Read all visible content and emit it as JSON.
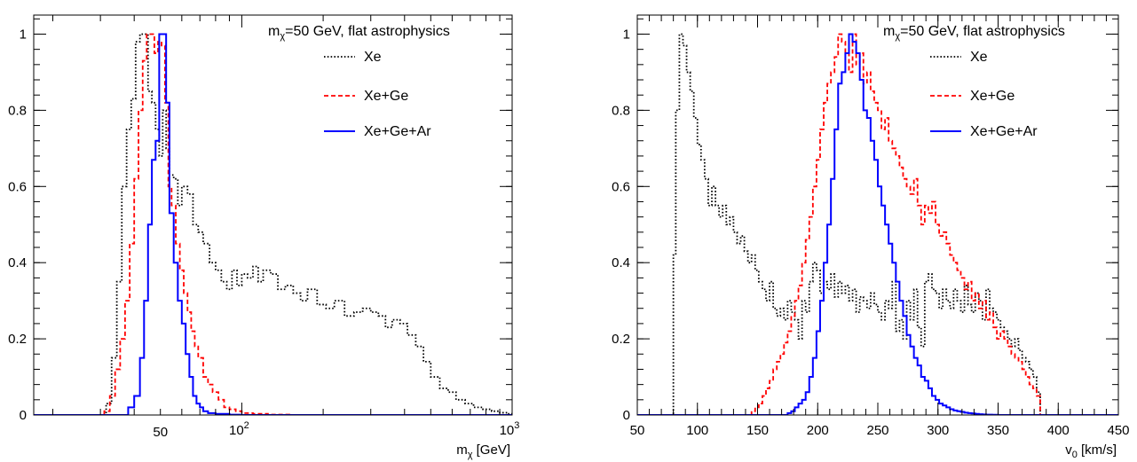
{
  "chart_data": [
    {
      "type": "line",
      "title": "m_χ=50 GeV, flat astrophysics",
      "title_main": "m",
      "title_sub": "χ",
      "title_rest": "=50 GeV, flat astrophysics",
      "xlabel_main": "m",
      "xlabel_sub": "χ",
      "xlabel_rest": " [GeV]",
      "x_scale": "log",
      "xlim": [
        17,
        1000
      ],
      "ylim": [
        0,
        1.05
      ],
      "grid": false,
      "legend": "top-right",
      "x_tick_labels": [
        {
          "x": 50,
          "text": "50"
        },
        {
          "x": 100,
          "base": "10",
          "exp": "2"
        },
        {
          "x": 1000,
          "base": "10",
          "exp": "3"
        }
      ],
      "y_ticks": [
        0,
        0.2,
        0.4,
        0.6,
        0.8,
        1
      ],
      "y_tick_labels": [
        "0",
        "0.2",
        "0.4",
        "0.6",
        "0.8",
        "1"
      ],
      "series": [
        {
          "name": "Xe",
          "color": "#000000",
          "style": "dotted",
          "x": [
            17,
            20,
            23,
            26,
            29,
            31.5,
            33,
            34.5,
            36,
            37.5,
            39,
            40.5,
            42,
            43.5,
            45,
            46.5,
            48,
            49.5,
            51,
            52.5,
            54,
            56,
            58,
            60,
            63,
            66,
            69,
            72,
            76,
            80,
            84,
            88,
            92,
            96,
            100,
            105,
            110,
            115,
            120,
            128,
            136,
            145,
            155,
            165,
            175,
            190,
            205,
            220,
            240,
            260,
            280,
            300,
            320,
            340,
            360,
            385,
            410,
            440,
            470,
            500,
            540,
            580,
            620,
            670,
            720,
            780,
            840,
            900,
            960,
            1000
          ],
          "y": [
            0,
            0,
            0,
            0,
            0,
            0.03,
            0.15,
            0.35,
            0.6,
            0.75,
            0.83,
            0.98,
            1.0,
            1.0,
            0.85,
            0.82,
            0.75,
            0.68,
            0.8,
            0.7,
            0.63,
            0.62,
            0.55,
            0.6,
            0.58,
            0.5,
            0.48,
            0.45,
            0.4,
            0.38,
            0.35,
            0.33,
            0.38,
            0.34,
            0.37,
            0.36,
            0.39,
            0.35,
            0.38,
            0.37,
            0.33,
            0.34,
            0.32,
            0.3,
            0.33,
            0.29,
            0.28,
            0.3,
            0.26,
            0.27,
            0.28,
            0.27,
            0.26,
            0.23,
            0.25,
            0.24,
            0.21,
            0.18,
            0.14,
            0.1,
            0.07,
            0.06,
            0.04,
            0.03,
            0.02,
            0.015,
            0.01,
            0.006,
            0.003,
            0
          ]
        },
        {
          "name": "Xe+Ge",
          "color": "#ff0000",
          "style": "dashed",
          "x": [
            17,
            25,
            31,
            32.5,
            34,
            35.5,
            37,
            38.5,
            40,
            41.5,
            43,
            44.5,
            46,
            47.5,
            49,
            50.5,
            52,
            53.5,
            55,
            57,
            59,
            61,
            63,
            65,
            67,
            69,
            72,
            75,
            78,
            82,
            86,
            90,
            95,
            100,
            110,
            125,
            150,
            200,
            300,
            500,
            1000
          ],
          "y": [
            0,
            0,
            0.01,
            0.05,
            0.12,
            0.2,
            0.3,
            0.45,
            0.62,
            0.8,
            0.93,
            1.0,
            1.0,
            0.95,
            0.98,
            0.97,
            0.82,
            0.6,
            0.55,
            0.45,
            0.38,
            0.32,
            0.27,
            0.22,
            0.18,
            0.15,
            0.1,
            0.08,
            0.06,
            0.04,
            0.02,
            0.015,
            0.01,
            0.005,
            0.003,
            0.001,
            0,
            0,
            0,
            0,
            0
          ]
        },
        {
          "name": "Xe+Ge+Ar",
          "color": "#0000ff",
          "style": "solid",
          "x": [
            17,
            30,
            38,
            40,
            42,
            43.5,
            45,
            46.5,
            48,
            49.5,
            51,
            52.5,
            54,
            56,
            58,
            60,
            62,
            64,
            66,
            68,
            70,
            72,
            75,
            80,
            90,
            100,
            150,
            300,
            1000
          ],
          "y": [
            0,
            0,
            0.02,
            0.05,
            0.15,
            0.3,
            0.5,
            0.67,
            0.72,
            1.0,
            1.0,
            0.82,
            0.53,
            0.4,
            0.3,
            0.24,
            0.16,
            0.1,
            0.05,
            0.03,
            0.02,
            0.01,
            0.005,
            0.003,
            0.001,
            0,
            0,
            0,
            0
          ]
        }
      ]
    },
    {
      "type": "line",
      "title": "m_χ=50 GeV, flat astrophysics",
      "title_main": "m",
      "title_sub": "χ",
      "title_rest": "=50 GeV, flat astrophysics",
      "xlabel_main": "v",
      "xlabel_sub": "0",
      "xlabel_rest": " [km/s]",
      "x_scale": "linear",
      "xlim": [
        50,
        450
      ],
      "ylim": [
        0,
        1.05
      ],
      "grid": false,
      "legend": "top-right",
      "x_ticks": [
        50,
        100,
        150,
        200,
        250,
        300,
        350,
        400,
        450
      ],
      "x_tick_labels": [
        "50",
        "100",
        "150",
        "200",
        "250",
        "300",
        "350",
        "400",
        "450"
      ],
      "y_ticks": [
        0,
        0.2,
        0.4,
        0.6,
        0.8,
        1
      ],
      "y_tick_labels": [
        "0",
        "0.2",
        "0.4",
        "0.6",
        "0.8",
        "1"
      ],
      "series": [
        {
          "name": "Xe",
          "color": "#000000",
          "style": "dotted",
          "x": [
            50,
            80,
            82,
            85,
            88,
            91,
            94,
            97,
            100,
            103,
            106,
            109,
            112,
            115,
            118,
            121,
            124,
            127,
            130,
            133,
            136,
            139,
            142,
            145,
            148,
            151,
            154,
            157,
            160,
            163,
            166,
            169,
            172,
            175,
            178,
            181,
            184,
            187,
            190,
            193,
            196,
            199,
            202,
            205,
            208,
            211,
            214,
            217,
            220,
            223,
            226,
            229,
            232,
            235,
            238,
            241,
            244,
            247,
            250,
            253,
            256,
            259,
            262,
            265,
            268,
            271,
            274,
            277,
            280,
            283,
            286,
            289,
            292,
            295,
            298,
            301,
            304,
            307,
            310,
            313,
            316,
            319,
            322,
            325,
            328,
            331,
            334,
            337,
            340,
            343,
            346,
            349,
            352,
            355,
            358,
            361,
            364,
            367,
            370,
            373,
            376,
            379,
            382,
            385,
            450
          ],
          "y": [
            0,
            0.42,
            0.8,
            1.0,
            0.97,
            0.9,
            0.85,
            0.78,
            0.71,
            0.67,
            0.62,
            0.55,
            0.6,
            0.55,
            0.52,
            0.55,
            0.5,
            0.52,
            0.48,
            0.45,
            0.47,
            0.43,
            0.4,
            0.42,
            0.38,
            0.35,
            0.33,
            0.3,
            0.35,
            0.28,
            0.26,
            0.28,
            0.25,
            0.3,
            0.27,
            0.25,
            0.2,
            0.3,
            0.27,
            0.35,
            0.4,
            0.38,
            0.32,
            0.35,
            0.33,
            0.37,
            0.31,
            0.35,
            0.32,
            0.34,
            0.3,
            0.33,
            0.27,
            0.31,
            0.3,
            0.28,
            0.32,
            0.29,
            0.27,
            0.25,
            0.3,
            0.28,
            0.35,
            0.22,
            0.25,
            0.2,
            0.3,
            0.25,
            0.33,
            0.23,
            0.18,
            0.35,
            0.37,
            0.33,
            0.32,
            0.28,
            0.33,
            0.3,
            0.28,
            0.33,
            0.3,
            0.27,
            0.34,
            0.29,
            0.27,
            0.32,
            0.3,
            0.25,
            0.33,
            0.28,
            0.27,
            0.25,
            0.23,
            0.22,
            0.2,
            0.18,
            0.2,
            0.17,
            0.15,
            0.14,
            0.12,
            0.1,
            0.06,
            0,
            0
          ]
        },
        {
          "name": "Xe+Ge",
          "color": "#ff0000",
          "style": "dashed",
          "x": [
            50,
            145,
            148,
            151,
            154,
            157,
            160,
            163,
            166,
            169,
            172,
            175,
            178,
            181,
            184,
            187,
            190,
            193,
            196,
            199,
            202,
            205,
            208,
            211,
            214,
            217,
            220,
            223,
            226,
            229,
            232,
            235,
            238,
            241,
            244,
            247,
            250,
            253,
            256,
            259,
            262,
            265,
            268,
            271,
            274,
            277,
            280,
            283,
            286,
            289,
            292,
            295,
            298,
            301,
            304,
            307,
            310,
            313,
            316,
            319,
            322,
            325,
            328,
            331,
            334,
            337,
            340,
            343,
            346,
            349,
            352,
            355,
            358,
            361,
            364,
            367,
            370,
            373,
            376,
            379,
            382,
            385,
            450
          ],
          "y": [
            0,
            0.01,
            0.02,
            0.03,
            0.05,
            0.07,
            0.09,
            0.12,
            0.14,
            0.16,
            0.19,
            0.22,
            0.26,
            0.3,
            0.34,
            0.4,
            0.46,
            0.52,
            0.6,
            0.67,
            0.75,
            0.82,
            0.87,
            0.9,
            0.94,
            1.0,
            0.98,
            0.95,
            0.9,
            1.0,
            0.92,
            0.95,
            0.87,
            0.9,
            0.85,
            0.82,
            0.8,
            0.75,
            0.78,
            0.72,
            0.7,
            0.68,
            0.65,
            0.62,
            0.6,
            0.58,
            0.62,
            0.55,
            0.5,
            0.55,
            0.53,
            0.56,
            0.5,
            0.47,
            0.48,
            0.45,
            0.42,
            0.4,
            0.38,
            0.36,
            0.33,
            0.35,
            0.3,
            0.32,
            0.28,
            0.3,
            0.25,
            0.27,
            0.23,
            0.2,
            0.22,
            0.2,
            0.18,
            0.16,
            0.15,
            0.14,
            0.12,
            0.1,
            0.08,
            0.07,
            0.05,
            0,
            0
          ]
        },
        {
          "name": "Xe+Ge+Ar",
          "color": "#0000ff",
          "style": "solid",
          "x": [
            50,
            175,
            178,
            181,
            184,
            187,
            190,
            193,
            196,
            199,
            202,
            205,
            208,
            211,
            214,
            217,
            220,
            223,
            226,
            229,
            232,
            235,
            238,
            241,
            244,
            247,
            250,
            253,
            256,
            259,
            262,
            265,
            268,
            271,
            274,
            277,
            280,
            283,
            286,
            289,
            292,
            295,
            298,
            301,
            304,
            307,
            310,
            313,
            316,
            319,
            322,
            325,
            328,
            331,
            334,
            337,
            340,
            345,
            350,
            360,
            380,
            450
          ],
          "y": [
            0,
            0.005,
            0.01,
            0.02,
            0.03,
            0.04,
            0.06,
            0.1,
            0.15,
            0.22,
            0.3,
            0.4,
            0.5,
            0.62,
            0.75,
            0.87,
            0.9,
            0.95,
            1.0,
            0.98,
            0.95,
            0.88,
            0.8,
            0.78,
            0.72,
            0.67,
            0.6,
            0.55,
            0.5,
            0.45,
            0.4,
            0.35,
            0.3,
            0.26,
            0.21,
            0.18,
            0.15,
            0.13,
            0.1,
            0.09,
            0.07,
            0.05,
            0.04,
            0.03,
            0.025,
            0.02,
            0.015,
            0.012,
            0.01,
            0.008,
            0.006,
            0.005,
            0.004,
            0.003,
            0.002,
            0.0015,
            0.001,
            0.0005,
            0,
            0,
            0,
            0
          ]
        }
      ]
    }
  ]
}
